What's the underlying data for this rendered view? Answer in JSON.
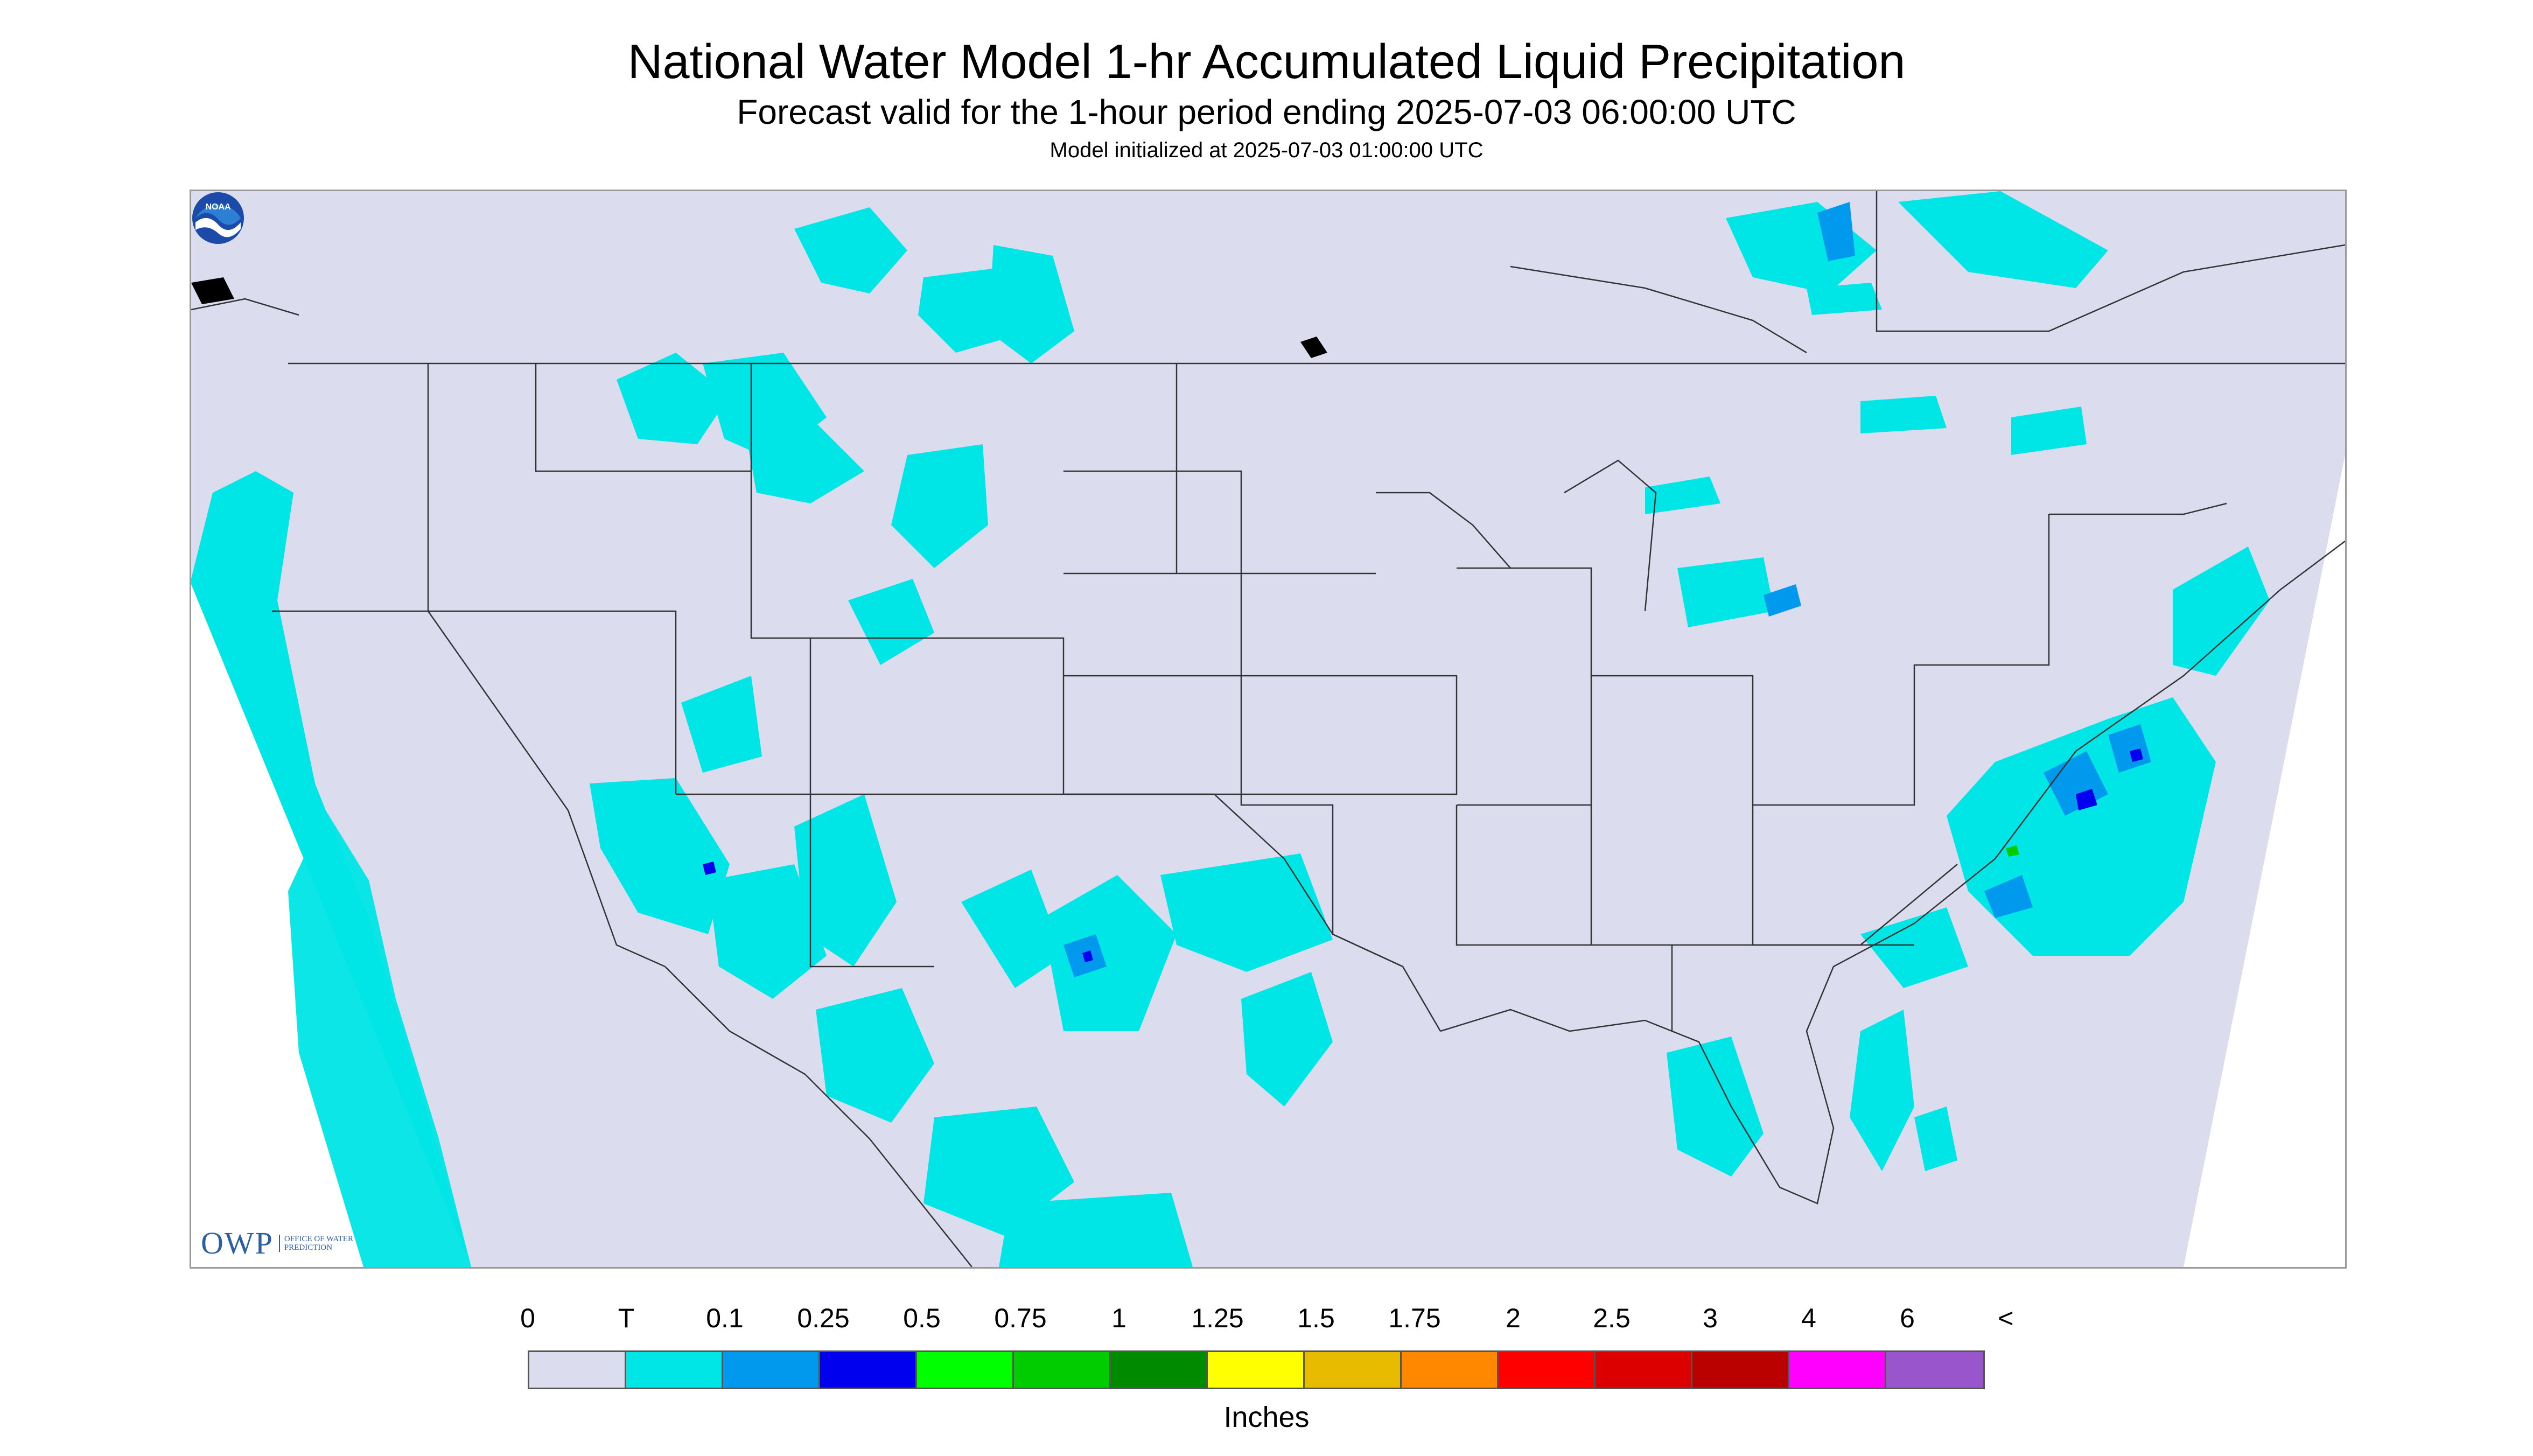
{
  "title": "National Water Model 1-hr Accumulated Liquid Precipitation",
  "subtitle": "Forecast valid for the 1-hour period ending 2025-07-03 06:00:00 UTC",
  "init_line": "Model initialized at 2025-07-03 01:00:00 UTC",
  "logo": {
    "owp_text": "OWP",
    "owp_subtext": "OFFICE OF WATER PREDICTION",
    "noaa_icon": "noaa-logo"
  },
  "legend": {
    "units": "Inches",
    "tick_labels": [
      "0",
      "T",
      "0.1",
      "0.25",
      "0.5",
      "0.75",
      "1",
      "1.25",
      "1.5",
      "1.75",
      "2",
      "2.5",
      "3",
      "4",
      "6",
      "<"
    ],
    "colors": [
      "#dcdcef",
      "#00e5e5",
      "#0099ee",
      "#0000ee",
      "#00ff00",
      "#00cc00",
      "#008a00",
      "#ffff00",
      "#e6bb00",
      "#ff8800",
      "#ff0000",
      "#dd0000",
      "#bb0000",
      "#ff00ff",
      "#9955cc"
    ]
  },
  "colors": {
    "no_data_background": "#dcdcef",
    "outside_domain": "#ffffff",
    "boundary_lines": "#333333"
  }
}
